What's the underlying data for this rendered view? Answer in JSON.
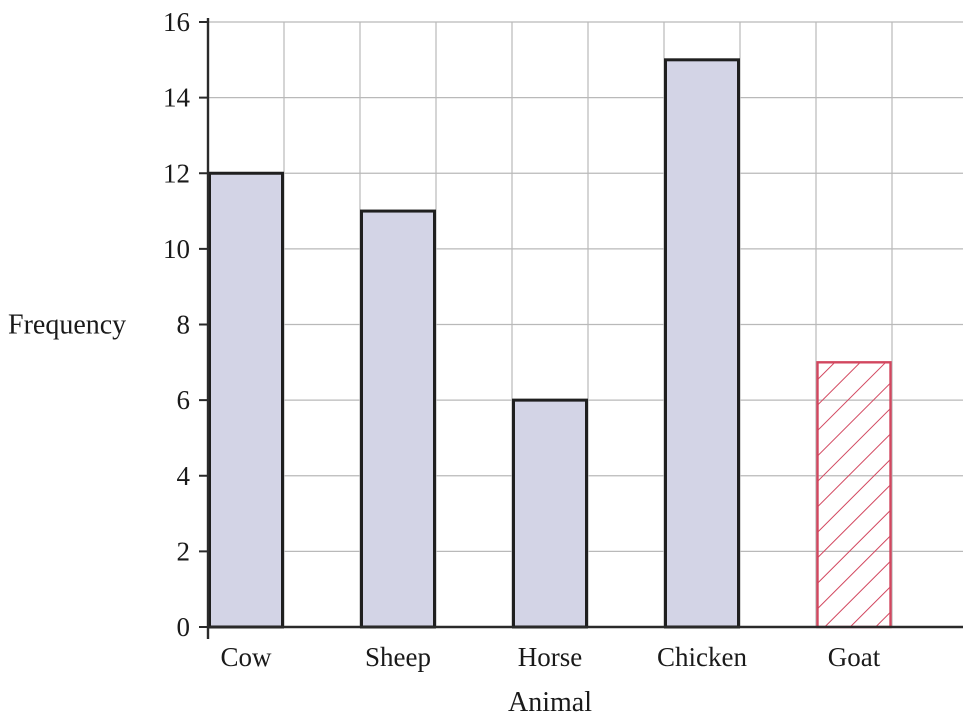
{
  "chart_data": {
    "type": "bar",
    "title": "",
    "xlabel": "Animal",
    "ylabel": "Frequency",
    "categories": [
      "Cow",
      "Sheep",
      "Horse",
      "Chicken",
      "Goat"
    ],
    "values": [
      12,
      11,
      6,
      15,
      7
    ],
    "ylim": [
      0,
      16
    ],
    "yticks": [
      0,
      2,
      4,
      6,
      8,
      10,
      12,
      14,
      16
    ],
    "grid": true,
    "legend": "none",
    "bar_fill": "#d3d4e6",
    "bar_edge": "#1f1f1f",
    "highlight": {
      "category": "Goat",
      "style": "hatched",
      "color": "#d2475f"
    },
    "grid_color": "#b9b9b9"
  }
}
